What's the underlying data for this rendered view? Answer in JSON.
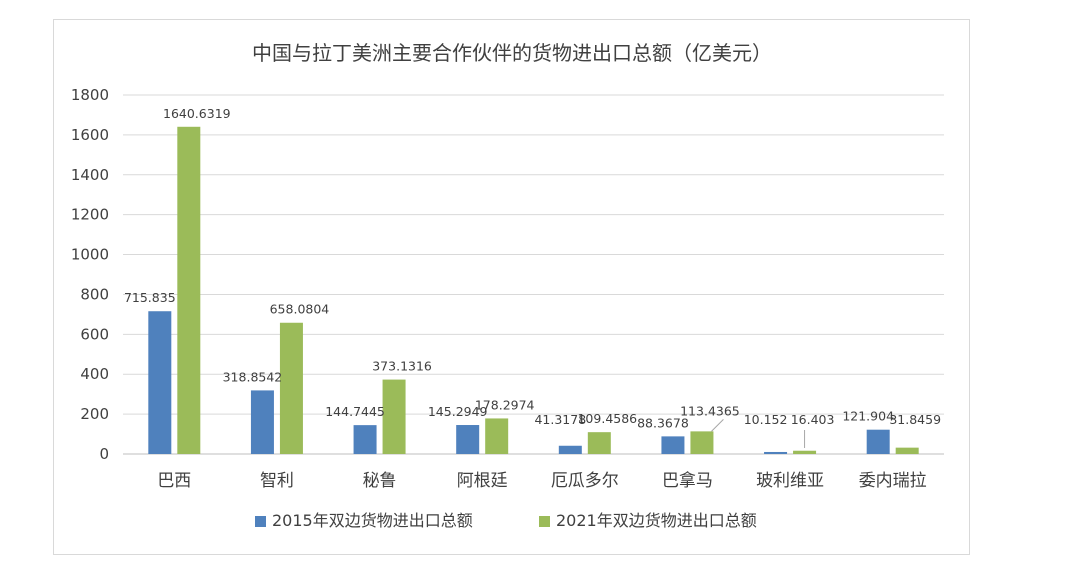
{
  "chart_data": {
    "type": "bar",
    "title": "中国与拉丁美洲主要合作伙伴的货物进出口总额（亿美元）",
    "categories": [
      "巴西",
      "智利",
      "秘鲁",
      "阿根廷",
      "厄瓜多尔",
      "巴拿马",
      "玻利维亚",
      "委内瑞拉"
    ],
    "series": [
      {
        "name": "2015年双边货物进出口总额",
        "color": "#4f81bd",
        "values": [
          715.835,
          318.8542,
          144.7445,
          145.2949,
          41.3178,
          88.3678,
          10.152,
          121.904
        ],
        "labels": [
          "715.835",
          "318.8542",
          "144.7445",
          "145.2949",
          "41.3178",
          "88.3678",
          "10.152",
          "121.904"
        ]
      },
      {
        "name": "2021年双边货物进出口总额",
        "color": "#9bbb59",
        "values": [
          1640.6319,
          658.0804,
          373.1316,
          178.2974,
          109.4586,
          113.4365,
          16.403,
          31.8459
        ],
        "labels": [
          "1640.6319",
          "658.0804",
          "373.1316",
          "178.2974",
          "109.4586",
          "113.4365",
          "16.403",
          "31.8459"
        ]
      }
    ],
    "ylim": [
      0,
      1800
    ],
    "yticks": [
      0,
      200,
      400,
      600,
      800,
      1000,
      1200,
      1400,
      1600,
      1800
    ],
    "xlabel": "",
    "ylabel": "",
    "grid": true,
    "legend_position": "bottom"
  }
}
